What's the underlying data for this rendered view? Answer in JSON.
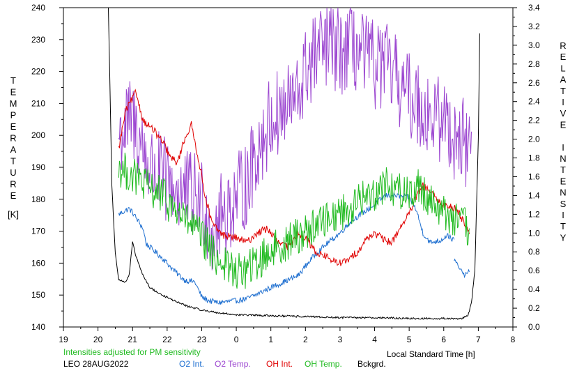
{
  "chart_data": {
    "type": "line",
    "left_axis_label": "TEMPERATURE",
    "left_axis_unit": "[K]",
    "right_axis_label": "RELATIVE INTENSITY",
    "xlabel": "Local Standard Time [h]",
    "x_ticks": [
      "19",
      "20",
      "21",
      "22",
      "23",
      "0",
      "1",
      "2",
      "3",
      "4",
      "5",
      "6",
      "7",
      "8"
    ],
    "x_range": [
      19,
      32
    ],
    "y_left_range": [
      140,
      240
    ],
    "y_left_ticks": [
      "140",
      "150",
      "160",
      "170",
      "180",
      "190",
      "200",
      "210",
      "220",
      "230",
      "240"
    ],
    "y_right_range": [
      0.0,
      3.4
    ],
    "y_right_ticks": [
      "0.0",
      "0.2",
      "0.4",
      "0.6",
      "0.8",
      "1.0",
      "1.2",
      "1.4",
      "1.6",
      "1.8",
      "2.0",
      "2.2",
      "2.4",
      "2.6",
      "2.8",
      "3.0",
      "3.2",
      "3.4"
    ],
    "note": "Intensities adjusted for PM sensitivity",
    "station_date": "LEO 28AUG2022",
    "grid": false,
    "legend_placement": "bottom",
    "series": [
      {
        "name": "O2 Int.",
        "axis": "right",
        "color": "#1e6fd0",
        "noise": 0.03,
        "points": [
          [
            20.6,
            1.2
          ],
          [
            20.9,
            1.26
          ],
          [
            21.0,
            1.22
          ],
          [
            21.3,
            1.05
          ],
          [
            21.4,
            0.88
          ],
          [
            21.6,
            0.82
          ],
          [
            21.9,
            0.72
          ],
          [
            22.2,
            0.6
          ],
          [
            22.5,
            0.5
          ],
          [
            22.8,
            0.48
          ],
          [
            23.0,
            0.32
          ],
          [
            23.2,
            0.28
          ],
          [
            23.5,
            0.26
          ],
          [
            24.0,
            0.28
          ],
          [
            24.3,
            0.3
          ],
          [
            24.6,
            0.35
          ],
          [
            25.0,
            0.42
          ],
          [
            25.5,
            0.5
          ],
          [
            25.8,
            0.55
          ],
          [
            26.0,
            0.65
          ],
          [
            26.3,
            0.78
          ],
          [
            26.6,
            0.88
          ],
          [
            27.0,
            1.0
          ],
          [
            27.3,
            1.12
          ],
          [
            27.6,
            1.2
          ],
          [
            28.0,
            1.3
          ],
          [
            28.3,
            1.4
          ],
          [
            28.6,
            1.4
          ],
          [
            29.0,
            1.38
          ],
          [
            29.2,
            1.25
          ],
          [
            29.4,
            1.0
          ],
          [
            29.6,
            0.9
          ],
          [
            29.9,
            0.92
          ],
          [
            30.1,
            0.98
          ],
          [
            30.3,
            0.92
          ]
        ]
      },
      {
        "name": "O2 Int.",
        "axis": "right",
        "color": "#1e6fd0",
        "noise": 0.02,
        "points": [
          [
            30.3,
            0.72
          ],
          [
            30.5,
            0.6
          ],
          [
            30.6,
            0.55
          ],
          [
            30.75,
            0.6
          ]
        ]
      },
      {
        "name": "O2 Temp.",
        "axis": "left",
        "color": "#9b45d0",
        "noise": 14,
        "points": [
          [
            20.6,
            200
          ],
          [
            21.0,
            205
          ],
          [
            21.5,
            190
          ],
          [
            22.0,
            185
          ],
          [
            22.5,
            182
          ],
          [
            23.0,
            180
          ],
          [
            23.3,
            170
          ],
          [
            23.6,
            175
          ],
          [
            24.0,
            180
          ],
          [
            24.3,
            185
          ],
          [
            24.6,
            195
          ],
          [
            25.0,
            205
          ],
          [
            25.4,
            208
          ],
          [
            25.8,
            212
          ],
          [
            26.0,
            220
          ],
          [
            26.3,
            225
          ],
          [
            26.6,
            228
          ],
          [
            27.0,
            226
          ],
          [
            27.3,
            228
          ],
          [
            27.6,
            225
          ],
          [
            28.0,
            222
          ],
          [
            28.3,
            222
          ],
          [
            28.6,
            218
          ],
          [
            29.0,
            212
          ],
          [
            29.3,
            210
          ],
          [
            29.6,
            206
          ],
          [
            30.0,
            205
          ],
          [
            30.3,
            200
          ],
          [
            30.6,
            198
          ],
          [
            30.8,
            195
          ]
        ]
      },
      {
        "name": "OH Int.",
        "axis": "right",
        "color": "#e00000",
        "noise": 0.04,
        "points": [
          [
            20.6,
            1.9
          ],
          [
            20.8,
            2.3
          ],
          [
            21.1,
            2.5
          ],
          [
            21.3,
            2.2
          ],
          [
            21.6,
            2.1
          ],
          [
            21.9,
            1.95
          ],
          [
            22.1,
            1.8
          ],
          [
            22.3,
            1.75
          ],
          [
            22.5,
            2.0
          ],
          [
            22.7,
            2.15
          ],
          [
            22.9,
            1.8
          ],
          [
            23.1,
            1.4
          ],
          [
            23.3,
            1.1
          ],
          [
            23.6,
            0.98
          ],
          [
            24.0,
            0.95
          ],
          [
            24.3,
            0.9
          ],
          [
            24.6,
            1.0
          ],
          [
            24.9,
            1.05
          ],
          [
            25.2,
            0.9
          ],
          [
            25.5,
            0.85
          ],
          [
            25.8,
            1.0
          ],
          [
            26.0,
            0.95
          ],
          [
            26.3,
            0.8
          ],
          [
            26.6,
            0.75
          ],
          [
            26.9,
            0.68
          ],
          [
            27.2,
            0.7
          ],
          [
            27.5,
            0.8
          ],
          [
            27.8,
            0.95
          ],
          [
            28.0,
            1.0
          ],
          [
            28.3,
            0.92
          ],
          [
            28.5,
            0.9
          ],
          [
            28.8,
            1.1
          ],
          [
            29.0,
            1.2
          ],
          [
            29.2,
            1.38
          ],
          [
            29.4,
            1.5
          ],
          [
            29.6,
            1.45
          ],
          [
            29.8,
            1.35
          ],
          [
            30.0,
            1.3
          ],
          [
            30.2,
            1.28
          ],
          [
            30.4,
            1.25
          ],
          [
            30.6,
            1.1
          ],
          [
            30.75,
            1.0
          ]
        ]
      },
      {
        "name": "OH Temp.",
        "axis": "left",
        "color": "#22bb22",
        "noise": 6,
        "points": [
          [
            20.6,
            190
          ],
          [
            20.9,
            188
          ],
          [
            21.2,
            186
          ],
          [
            21.5,
            183
          ],
          [
            21.8,
            182
          ],
          [
            22.1,
            178
          ],
          [
            22.4,
            175
          ],
          [
            22.7,
            172
          ],
          [
            23.0,
            168
          ],
          [
            23.3,
            163
          ],
          [
            23.6,
            160
          ],
          [
            24.0,
            157
          ],
          [
            24.3,
            158
          ],
          [
            24.6,
            160
          ],
          [
            25.0,
            164
          ],
          [
            25.4,
            166
          ],
          [
            25.7,
            168
          ],
          [
            26.0,
            170
          ],
          [
            26.3,
            172
          ],
          [
            26.6,
            174
          ],
          [
            27.0,
            176
          ],
          [
            27.3,
            177
          ],
          [
            27.6,
            180
          ],
          [
            28.0,
            182
          ],
          [
            28.3,
            185
          ],
          [
            28.6,
            183
          ],
          [
            29.0,
            182
          ],
          [
            29.3,
            184
          ],
          [
            29.6,
            180
          ],
          [
            30.0,
            176
          ],
          [
            30.3,
            174
          ],
          [
            30.6,
            172
          ],
          [
            30.75,
            168
          ]
        ]
      },
      {
        "name": "Bckgrd.",
        "axis": "right",
        "color": "#000000",
        "noise": 0.01,
        "points": [
          [
            20.3,
            3.4
          ],
          [
            20.35,
            2.5
          ],
          [
            20.4,
            1.5
          ],
          [
            20.5,
            0.8
          ],
          [
            20.6,
            0.5
          ],
          [
            20.8,
            0.48
          ],
          [
            20.9,
            0.55
          ],
          [
            21.0,
            0.9
          ],
          [
            21.1,
            0.75
          ],
          [
            21.3,
            0.55
          ],
          [
            21.5,
            0.42
          ],
          [
            21.8,
            0.35
          ],
          [
            22.2,
            0.28
          ],
          [
            22.6,
            0.22
          ],
          [
            23.0,
            0.18
          ],
          [
            23.5,
            0.15
          ],
          [
            24.0,
            0.13
          ],
          [
            25.0,
            0.12
          ],
          [
            26.0,
            0.11
          ],
          [
            27.0,
            0.1
          ],
          [
            28.0,
            0.1
          ],
          [
            29.0,
            0.09
          ],
          [
            30.0,
            0.09
          ],
          [
            30.5,
            0.09
          ],
          [
            30.7,
            0.12
          ],
          [
            30.8,
            0.25
          ],
          [
            30.9,
            0.6
          ],
          [
            31.0,
            2.0
          ],
          [
            31.05,
            3.4
          ]
        ]
      }
    ]
  }
}
